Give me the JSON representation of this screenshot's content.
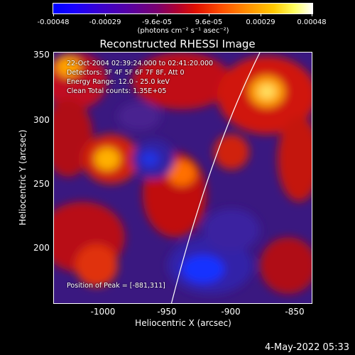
{
  "colorbar": {
    "ticks": [
      "-0.00048",
      "-0.00029",
      "-9.6e-05",
      "9.6e-05",
      "0.00029",
      "0.00048"
    ],
    "units": "(photons cm⁻² s⁻¹ asec⁻²)"
  },
  "title": "Reconstructed RHESSI Image",
  "info": {
    "time_range": "22-Oct-2004 02:39:24.000 to 02:41:20.000",
    "detectors": "Detectors: 3F 4F 5F 6F 7F 8F, Att 0",
    "energy": "Energy Range: 12.0 - 25.0 keV",
    "method": "Clean    Total counts: 1.35E+05",
    "peak": "Position of Peak = [-881,311]"
  },
  "axes": {
    "xlabel": "Heliocentric X (arcsec)",
    "ylabel": "Heliocentric Y (arcsec)",
    "xticks": [
      "-1000",
      "-950",
      "-900",
      "-850"
    ],
    "yticks": [
      "350",
      "300",
      "250",
      "200"
    ]
  },
  "footer": {
    "date": "4-May-2022 05:33"
  }
}
